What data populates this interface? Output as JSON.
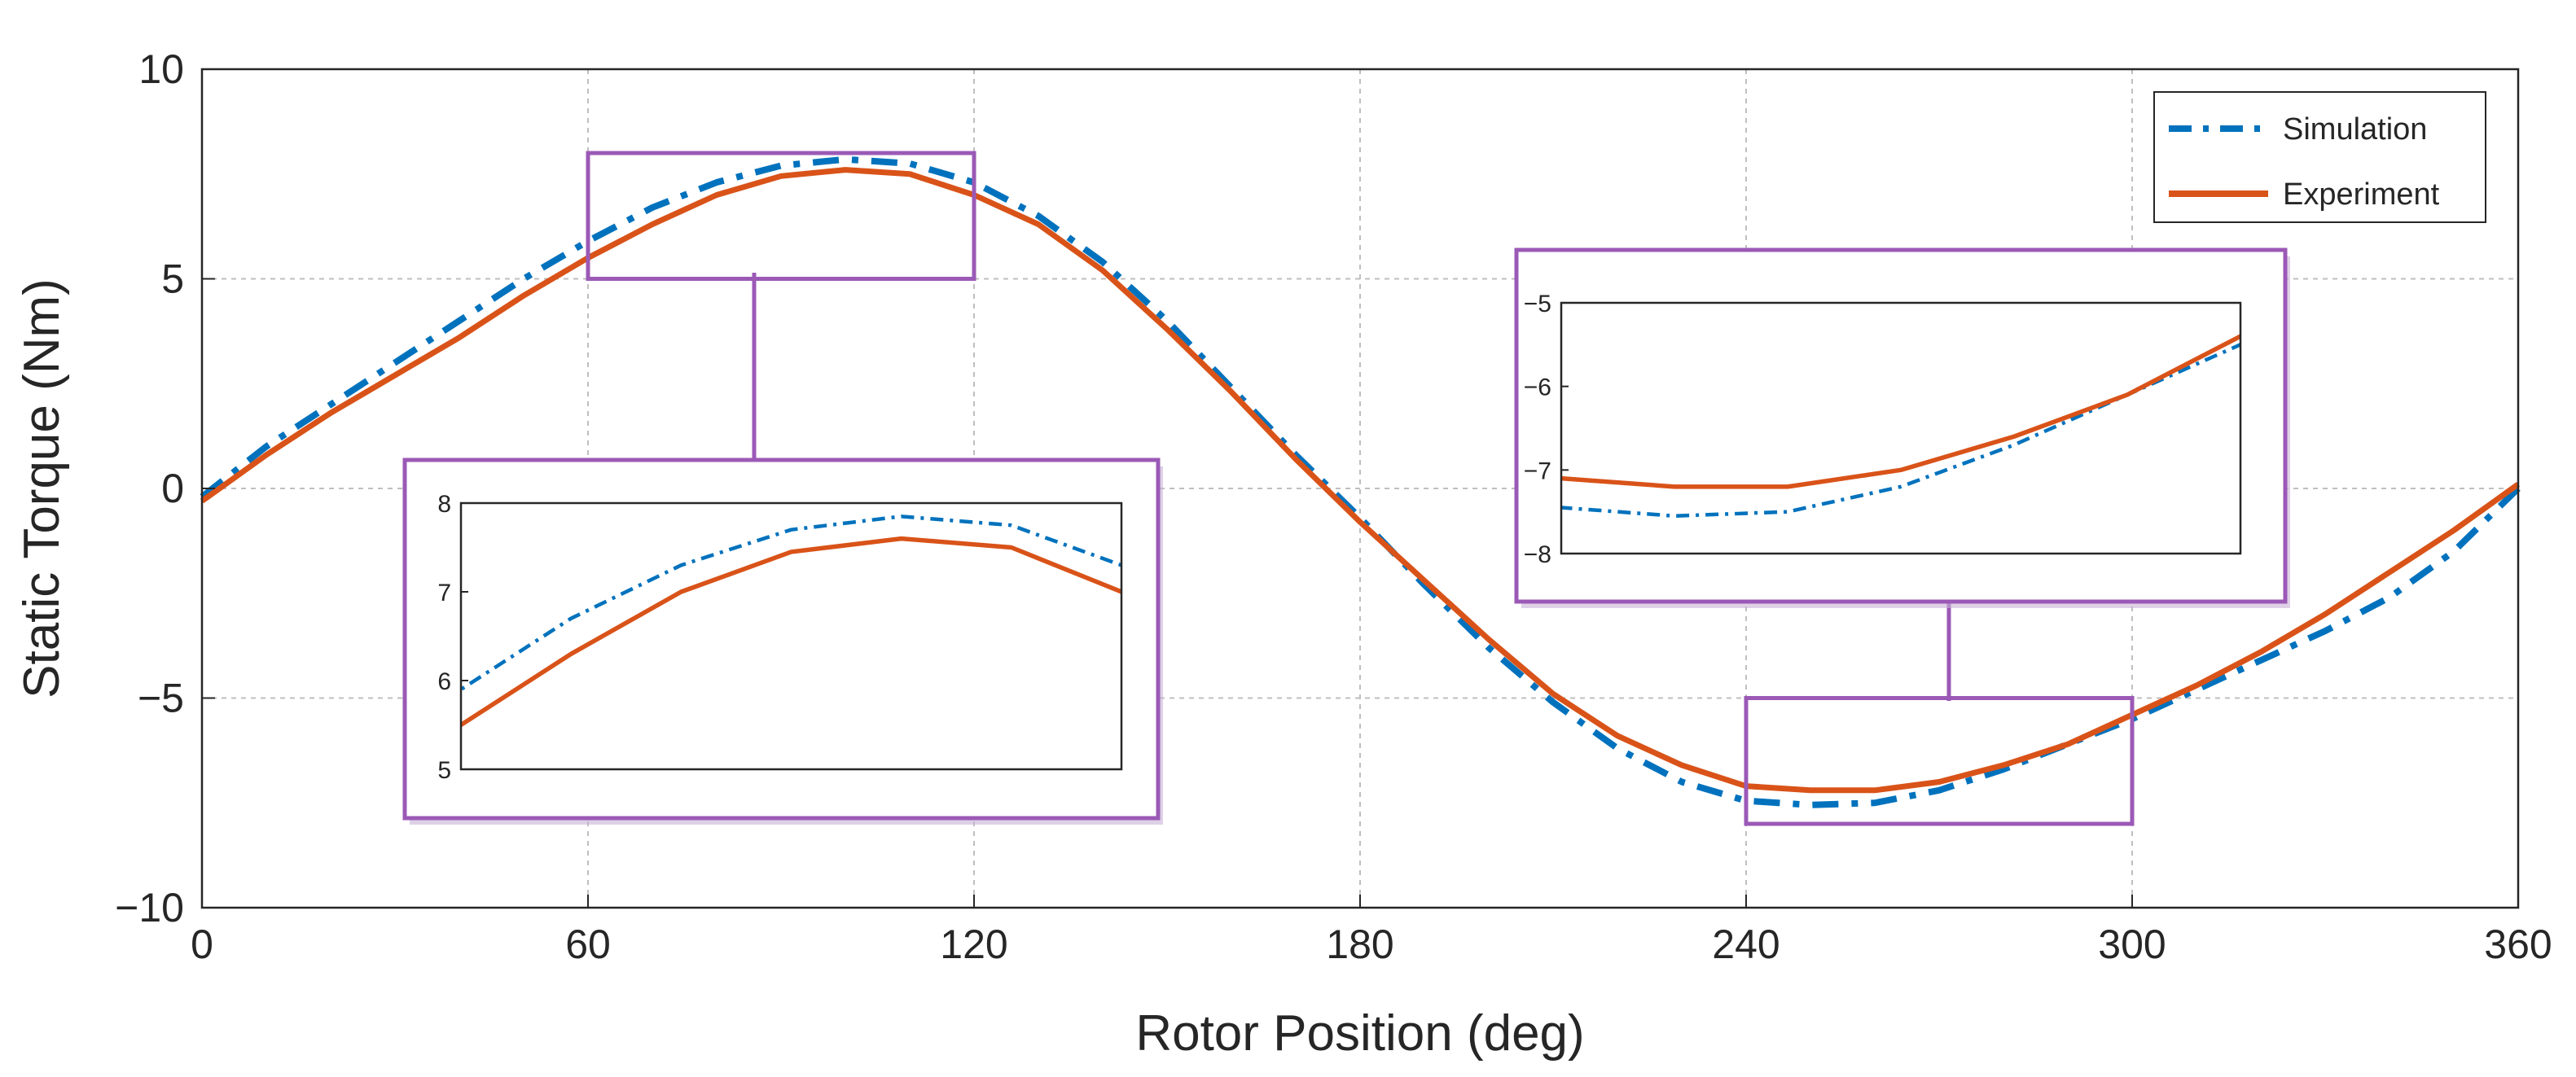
{
  "chart_data": {
    "type": "line",
    "xlabel": "Rotor Position (deg)",
    "ylabel": "Static Torque (Nm)",
    "xlim": [
      0,
      360
    ],
    "ylim": [
      -10,
      10
    ],
    "xticks": [
      0,
      60,
      120,
      180,
      240,
      300,
      360
    ],
    "yticks": [
      -10,
      -5,
      0,
      5,
      10
    ],
    "xtick_labels": [
      "0",
      "60",
      "120",
      "180",
      "240",
      "300",
      "360"
    ],
    "ytick_labels": [
      "−10",
      "−5",
      "0",
      "5",
      "10"
    ],
    "grid": true,
    "legend_position": "top-right",
    "x": [
      0,
      10,
      20,
      30,
      40,
      50,
      60,
      70,
      80,
      90,
      100,
      110,
      120,
      130,
      140,
      150,
      160,
      170,
      180,
      190,
      200,
      210,
      220,
      230,
      240,
      250,
      260,
      270,
      280,
      290,
      300,
      310,
      320,
      330,
      340,
      350,
      360
    ],
    "series": [
      {
        "name": "Simulation",
        "color": "#0072BD",
        "style": "dash-dot",
        "values": [
          -0.2,
          1.0,
          2.0,
          3.0,
          4.0,
          5.0,
          5.9,
          6.7,
          7.3,
          7.7,
          7.85,
          7.75,
          7.3,
          6.5,
          5.4,
          4.0,
          2.4,
          0.8,
          -0.7,
          -2.3,
          -3.8,
          -5.1,
          -6.2,
          -7.0,
          -7.45,
          -7.55,
          -7.5,
          -7.2,
          -6.7,
          -6.1,
          -5.5,
          -4.8,
          -4.1,
          -3.4,
          -2.6,
          -1.5,
          0.0
        ]
      },
      {
        "name": "Experiment",
        "color": "#D95319",
        "style": "solid",
        "values": [
          -0.3,
          0.8,
          1.8,
          2.7,
          3.6,
          4.6,
          5.5,
          6.3,
          7.0,
          7.45,
          7.6,
          7.5,
          7.0,
          6.3,
          5.2,
          3.8,
          2.3,
          0.7,
          -0.8,
          -2.2,
          -3.6,
          -4.9,
          -5.9,
          -6.6,
          -7.1,
          -7.2,
          -7.2,
          -7.0,
          -6.6,
          -6.1,
          -5.4,
          -4.7,
          -3.9,
          -3.0,
          -2.0,
          -1.0,
          0.1
        ]
      }
    ],
    "insets": [
      {
        "name": "inset-peak",
        "zoom_xlim": [
          60,
          120
        ],
        "zoom_ylim": [
          5,
          8
        ],
        "yticks": [
          5,
          6,
          7,
          8
        ],
        "ytick_labels": [
          "5",
          "6",
          "7",
          "8"
        ]
      },
      {
        "name": "inset-trough",
        "zoom_xlim": [
          240,
          300
        ],
        "zoom_ylim": [
          -8,
          -5
        ],
        "yticks": [
          -8,
          -7,
          -6,
          -5
        ],
        "ytick_labels": [
          "−8",
          "−7",
          "−6",
          "−5"
        ]
      }
    ]
  }
}
